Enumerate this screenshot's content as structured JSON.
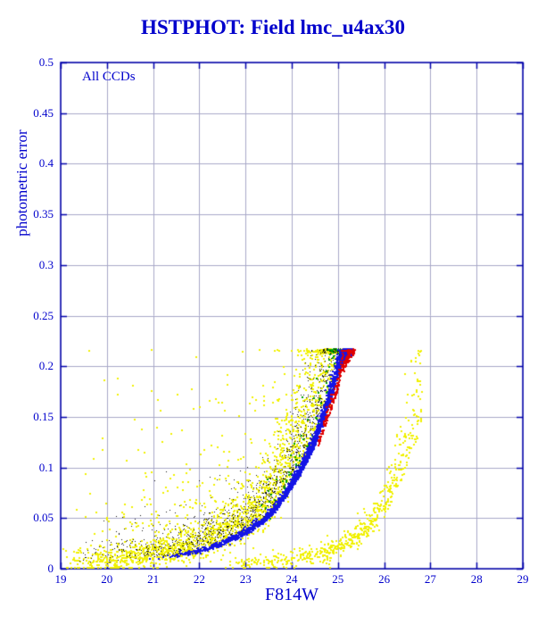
{
  "colors": {
    "background": "#ffffff",
    "title_text": "#0000cc",
    "axis": "#0000aa",
    "grid": "#a8a8c8",
    "label_text": "#0000cc"
  },
  "chart_data": {
    "type": "scatter",
    "title": "HSTPHOT: Field lmc_u4ax30",
    "annotation": "All CCDs",
    "xlabel": "F814W",
    "ylabel": "photometric error",
    "xlim": [
      19,
      29
    ],
    "ylim": [
      0,
      0.5
    ],
    "xticks": [
      19,
      20,
      21,
      22,
      23,
      24,
      25,
      26,
      27,
      28,
      29
    ],
    "yticks": [
      0,
      0.05,
      0.1,
      0.15,
      0.2,
      0.25,
      0.3,
      0.35,
      0.4,
      0.45,
      0.5
    ],
    "grid": true,
    "legend": "none",
    "error_cap": 0.2175,
    "main_locus": [
      [
        19,
        0.005
      ],
      [
        20,
        0.007
      ],
      [
        21,
        0.011
      ],
      [
        22,
        0.018
      ],
      [
        23,
        0.036
      ],
      [
        23.5,
        0.052
      ],
      [
        24,
        0.082
      ],
      [
        24.5,
        0.125
      ],
      [
        25,
        0.195
      ],
      [
        25.3,
        0.2175
      ]
    ],
    "secondary_locus": [
      [
        22,
        0.004
      ],
      [
        23,
        0.005
      ],
      [
        24,
        0.008
      ],
      [
        25,
        0.018
      ],
      [
        25.5,
        0.03
      ],
      [
        26,
        0.055
      ],
      [
        26.5,
        0.105
      ],
      [
        26.8,
        0.15
      ]
    ],
    "series": [
      {
        "name": "yellow-halo",
        "color": "#f0f000",
        "count": 1800,
        "locus": "main",
        "mag_range": [
          19,
          25.3
        ],
        "faint_skew": 1.6,
        "mult_spread": 0.6,
        "add_spread": 0.006,
        "size": 2
      },
      {
        "name": "yellow-cloud",
        "color": "#f0f000",
        "count": 430,
        "locus": "main",
        "mag_range": [
          19.3,
          25.2
        ],
        "faint_skew": 1.3,
        "mult_spread": 0.3,
        "add_spread": 0.0,
        "exp_spread": 0.05,
        "size": 2
      },
      {
        "name": "yellow-secondary",
        "color": "#f0f000",
        "count": 560,
        "locus": "secondary",
        "mag_range": [
          22.3,
          26.8
        ],
        "faint_skew": 1.8,
        "mult_spread": 0.35,
        "add_spread": 0.004,
        "size": 2
      },
      {
        "name": "black-stars",
        "color": "#111111",
        "count": 1300,
        "locus": "main",
        "mag_range": [
          19,
          25.25
        ],
        "faint_skew": 2.2,
        "mult_spread": 0.28,
        "add_spread": 0.002,
        "exp_spread": 0.012,
        "size": 1
      },
      {
        "name": "green-stars",
        "color": "#00a000",
        "count": 120,
        "locus": "main",
        "mag_range": [
          23.2,
          25.25
        ],
        "faint_skew": 1.5,
        "mult_spread": 0.25,
        "add_spread": 0.002,
        "size": 2
      },
      {
        "name": "blue-stars",
        "color": "#1414e6",
        "count": 2200,
        "locus": "main",
        "mag_range": [
          20.5,
          25.3
        ],
        "faint_skew": 3.2,
        "mult_spread": 0.05,
        "add_spread": 0.0012,
        "size": 2
      },
      {
        "name": "red-stars",
        "color": "#e00000",
        "count": 220,
        "locus": "main",
        "mag_range": [
          24.55,
          25.35
        ],
        "faint_skew": 1.3,
        "mult_spread": 0.04,
        "add_spread": 0.001,
        "mag_offset": -0.08,
        "size": 2
      }
    ]
  }
}
